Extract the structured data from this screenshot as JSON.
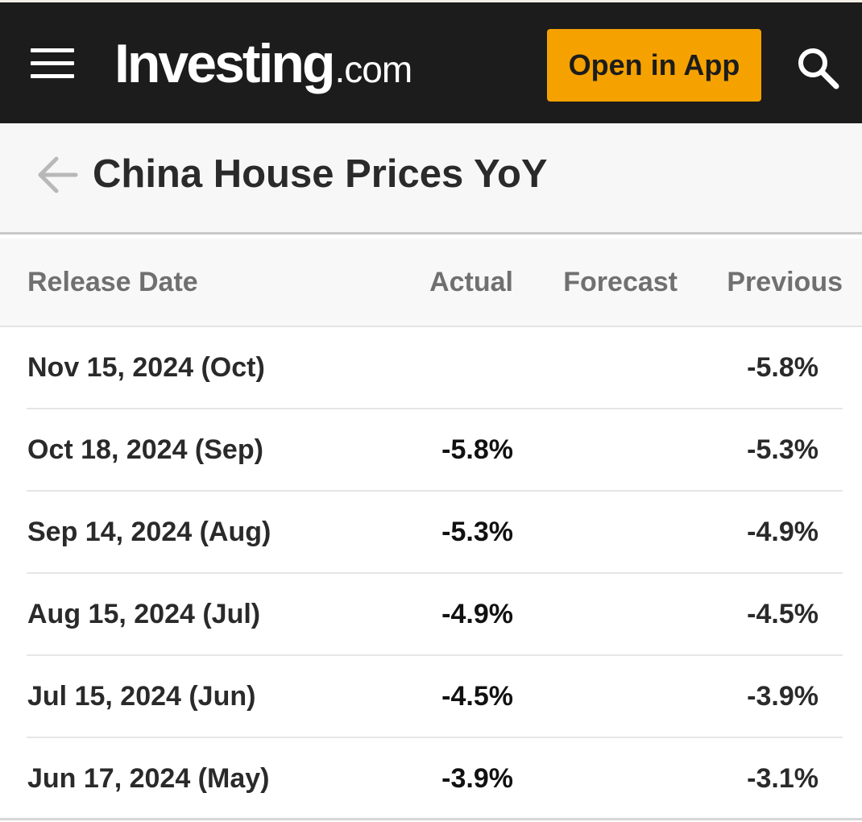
{
  "header": {
    "logo_main": "Investing",
    "logo_suffix": ".com",
    "open_app_label": "Open in App",
    "accent_color": "#f5a100"
  },
  "title_bar": {
    "title": "China House Prices YoY"
  },
  "table": {
    "columns": {
      "release_date": "Release Date",
      "actual": "Actual",
      "forecast": "Forecast",
      "previous": "Previous"
    },
    "rows": [
      {
        "date": "Nov 15, 2024 (Oct)",
        "actual": "",
        "forecast": "",
        "previous": "-5.8%"
      },
      {
        "date": "Oct 18, 2024 (Sep)",
        "actual": "-5.8%",
        "forecast": "",
        "previous": "-5.3%"
      },
      {
        "date": "Sep 14, 2024 (Aug)",
        "actual": "-5.3%",
        "forecast": "",
        "previous": "-4.9%"
      },
      {
        "date": "Aug 15, 2024 (Jul)",
        "actual": "-4.9%",
        "forecast": "",
        "previous": "-4.5%"
      },
      {
        "date": "Jul 15, 2024 (Jun)",
        "actual": "-4.5%",
        "forecast": "",
        "previous": "-3.9%"
      },
      {
        "date": "Jun 17, 2024 (May)",
        "actual": "-3.9%",
        "forecast": "",
        "previous": "-3.1%"
      }
    ]
  },
  "icons": {
    "menu": "menu-icon",
    "search": "search-icon",
    "back": "back-arrow-icon"
  }
}
